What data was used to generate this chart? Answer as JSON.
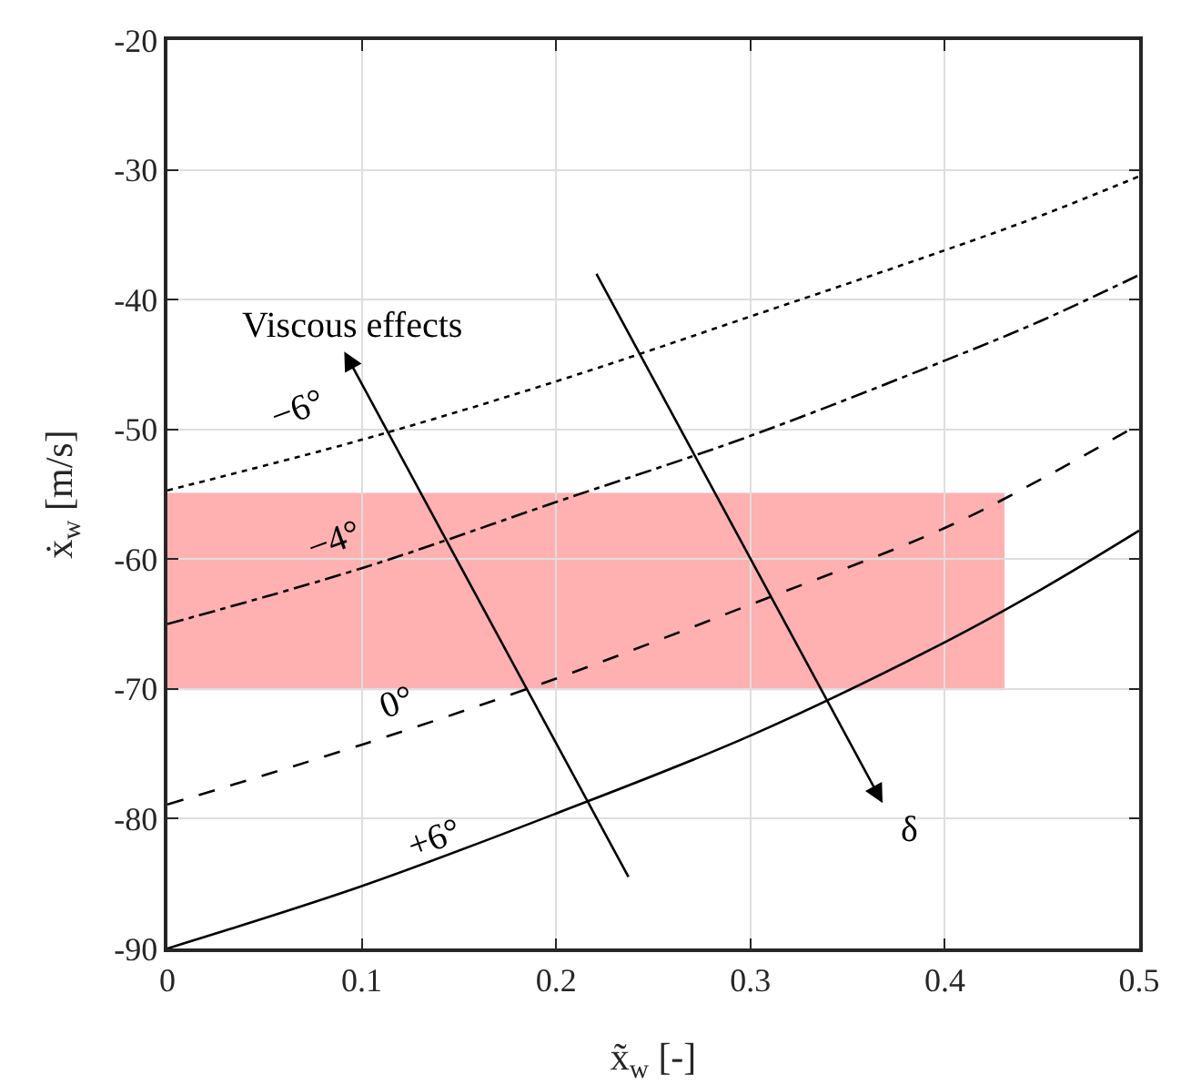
{
  "chart_data": {
    "type": "line",
    "xlabel": "x̃$_{w}$ [-]",
    "ylabel": "ẋ$_{w}$ [m/s]",
    "x": [
      0,
      0.1,
      0.2,
      0.3,
      0.4,
      0.45,
      0.5
    ],
    "series": [
      {
        "color": "#000000",
        "line_style": "dotted",
        "values": [
          -54.7,
          -50.8,
          -46.3,
          -41.3,
          -36.2,
          -33.5,
          -30.5
        ]
      },
      {
        "color": "#000000",
        "line_style": "dashdot",
        "values": [
          -65,
          -60.7,
          -55.6,
          -50.5,
          -44.7,
          -41.6,
          -38.1
        ]
      },
      {
        "color": "#000000",
        "line_style": "dashed",
        "values": [
          -78.9,
          -74.3,
          -69.2,
          -63.5,
          -57.6,
          -53.8,
          -49.6
        ]
      },
      {
        "color": "#000000",
        "line_style": "solid",
        "values": [
          -90,
          -85.2,
          -79.6,
          -73.6,
          -66.4,
          -62.3,
          -57.8
        ]
      }
    ],
    "xlim": [
      0,
      0.5
    ],
    "xticks": [
      0,
      0.1,
      0.2,
      0.3,
      0.4,
      0.5
    ],
    "ylim": [
      -90,
      -20
    ],
    "yticks": [
      -90,
      -80,
      -70,
      -60,
      -50,
      -40,
      -30,
      -20
    ],
    "grid": true,
    "marker": "none",
    "bands": [
      {
        "axis": "y",
        "from": -70,
        "to": -55,
        "color": "#ff0000"
      }
    ],
    "annotations": [
      "Viscous effects",
      "−6°",
      "−4°",
      "0°",
      "+6°",
      "δ"
    ]
  }
}
